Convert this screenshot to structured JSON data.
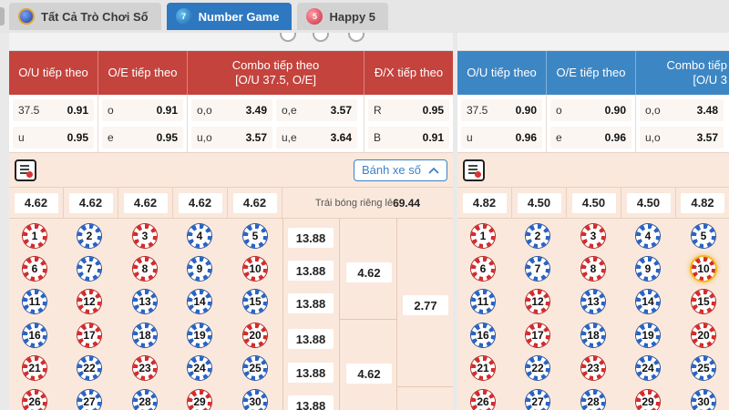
{
  "tabs": [
    {
      "label": "Tất Cả Trò Chơi Số",
      "icon": "lottery-ball-icon",
      "active": false
    },
    {
      "label": "Number Game",
      "icon": "number-ball-icon",
      "active": true,
      "badge": "7"
    },
    {
      "label": "Happy 5",
      "icon": "happy5-ball-icon",
      "active": false,
      "badge": "5"
    }
  ],
  "colors": {
    "left_header": "#c4433d",
    "right_header": "#3d86c4",
    "active_tab": "#2d78c0",
    "panel_bg": "#fae8dc"
  },
  "left": {
    "headers": [
      "O/U tiếp theo",
      "O/E tiếp theo",
      "Combo tiếp theo",
      "[O/U 37.5, O/E]",
      "Đ/X tiếp theo"
    ],
    "ou": [
      {
        "k": "37.5",
        "v": "0.91"
      },
      {
        "k": "u",
        "v": "0.95"
      }
    ],
    "oe": [
      {
        "k": "o",
        "v": "0.91"
      },
      {
        "k": "e",
        "v": "0.95"
      }
    ],
    "combo": [
      {
        "k": "o,o",
        "v": "3.49"
      },
      {
        "k": "o,e",
        "v": "3.57"
      },
      {
        "k": "u,o",
        "v": "3.57"
      },
      {
        "k": "u,e",
        "v": "3.64"
      }
    ],
    "dx": [
      {
        "k": "R",
        "v": "0.95"
      },
      {
        "k": "B",
        "v": "0.91"
      }
    ],
    "wheel_button": "Bánh xe số",
    "column_odds": [
      "4.62",
      "4.62",
      "4.62",
      "4.62",
      "4.62"
    ],
    "special_label": "Trái bóng riêng lẻ",
    "special_value": "69.44",
    "row_odds": [
      "13.88",
      "13.88",
      "13.88",
      "13.88",
      "13.88",
      "13.88"
    ],
    "group_odds": [
      "4.62",
      "4.62"
    ],
    "half_odds": "2.77"
  },
  "right": {
    "headers": [
      "O/U tiếp theo",
      "O/E tiếp theo",
      "Combo tiếp",
      "[O/U 3"
    ],
    "ou": [
      {
        "k": "37.5",
        "v": "0.90"
      },
      {
        "k": "u",
        "v": "0.96"
      }
    ],
    "oe": [
      {
        "k": "o",
        "v": "0.90"
      },
      {
        "k": "e",
        "v": "0.96"
      }
    ],
    "combo": [
      {
        "k": "o,o",
        "v": "3.48"
      },
      {
        "k": "u,o",
        "v": "3.57"
      }
    ],
    "column_odds": [
      "4.82",
      "4.50",
      "4.50",
      "4.50",
      "4.82"
    ]
  },
  "balls": [
    "1",
    "2",
    "3",
    "4",
    "5",
    "6",
    "7",
    "8",
    "9",
    "10",
    "11",
    "12",
    "13",
    "14",
    "15",
    "16",
    "17",
    "18",
    "19",
    "20",
    "21",
    "22",
    "23",
    "24",
    "25",
    "26",
    "27",
    "28",
    "29",
    "30"
  ],
  "left_ball_colors": [
    "red",
    "blue",
    "red",
    "blue",
    "blue",
    "red",
    "blue",
    "red",
    "blue",
    "red",
    "blue",
    "red",
    "blue",
    "blue",
    "blue",
    "blue",
    "red",
    "blue",
    "blue",
    "red",
    "red",
    "blue",
    "red",
    "blue",
    "blue",
    "red",
    "blue",
    "blue",
    "red",
    "blue"
  ],
  "right_ball_colors": [
    "red",
    "blue",
    "red",
    "blue",
    "blue",
    "red",
    "blue",
    "red",
    "blue",
    "gold",
    "blue",
    "red",
    "blue",
    "blue",
    "red",
    "blue",
    "red",
    "blue",
    "blue",
    "red",
    "red",
    "blue",
    "red",
    "blue",
    "blue",
    "red",
    "blue",
    "blue",
    "red",
    "blue"
  ]
}
